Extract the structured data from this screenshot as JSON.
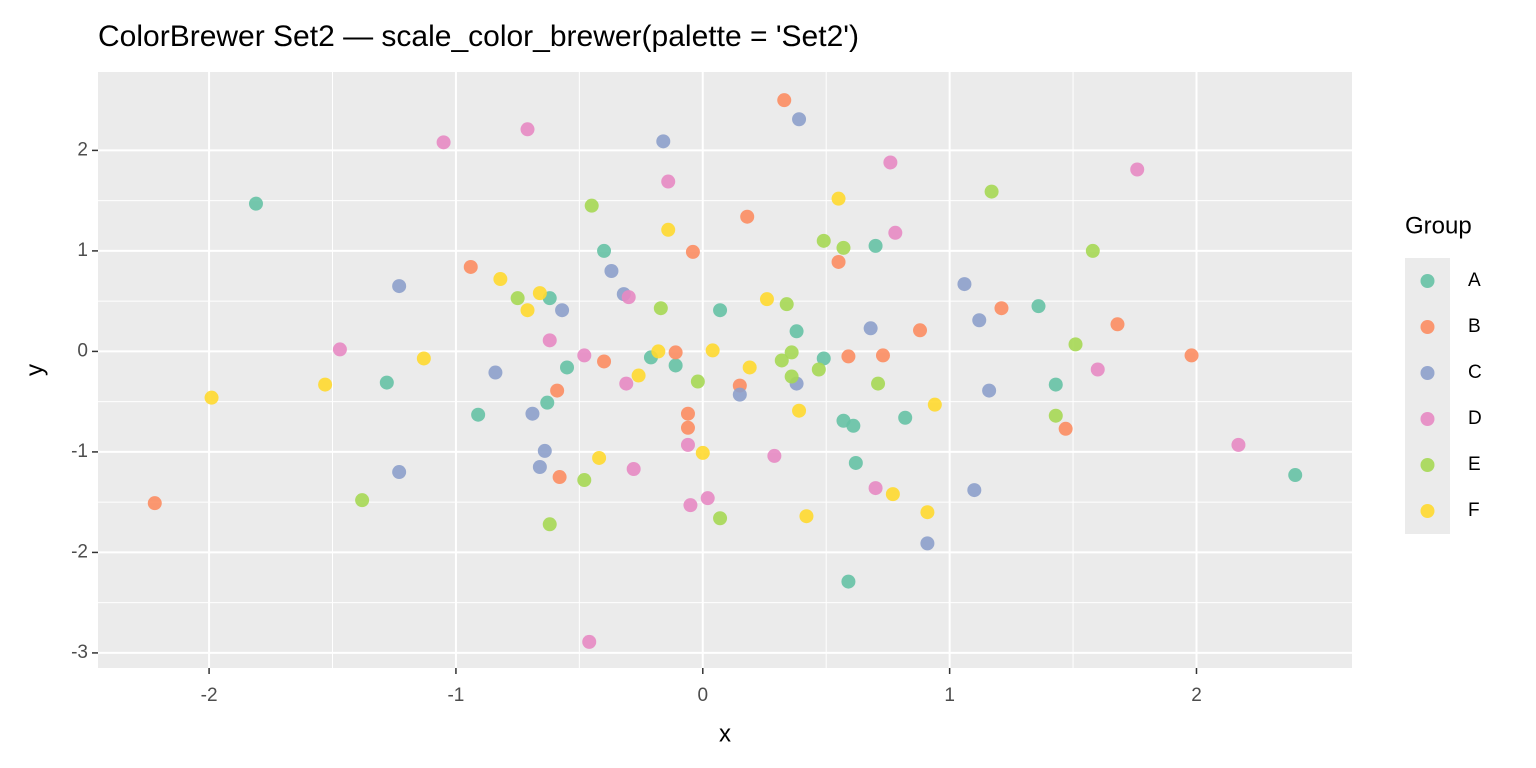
{
  "chart_data": {
    "type": "scatter",
    "title": "ColorBrewer Set2 — scale_color_brewer(palette = 'Set2')",
    "x_label": "x",
    "y_label": "y",
    "legend_title": "Group",
    "legend_position": "right",
    "grid": true,
    "xlim": [
      -2.45,
      2.63
    ],
    "ylim": [
      -3.15,
      2.78
    ],
    "xticks": [
      -2,
      -1,
      0,
      1,
      2
    ],
    "yticks": [
      -3,
      -2,
      -1,
      0,
      1,
      2
    ],
    "series": [
      {
        "name": "A",
        "color": "#66c2a5",
        "x": [
          -1.81,
          -1.28,
          -0.91,
          -0.62,
          -0.55,
          -0.63,
          -0.4,
          -0.21,
          -0.11,
          0.07,
          0.38,
          0.49,
          0.57,
          0.61,
          0.62,
          0.59,
          0.7,
          0.82,
          1.36,
          1.43,
          2.4
        ],
        "values": [
          1.47,
          -0.31,
          -0.63,
          0.53,
          -0.16,
          -0.51,
          1.0,
          -0.06,
          -0.14,
          0.41,
          0.2,
          -0.07,
          -0.69,
          -0.74,
          -1.11,
          -2.29,
          1.05,
          -0.66,
          0.45,
          -0.33,
          -1.23
        ]
      },
      {
        "name": "B",
        "color": "#fc8d62",
        "x": [
          -2.22,
          -0.94,
          -0.59,
          -0.58,
          -0.4,
          -0.11,
          -0.06,
          -0.06,
          -0.04,
          0.15,
          0.18,
          0.33,
          0.55,
          0.59,
          0.73,
          0.88,
          1.21,
          1.47,
          1.68,
          1.98
        ],
        "values": [
          -1.51,
          0.84,
          -0.39,
          -1.25,
          -0.1,
          -0.01,
          -0.62,
          -0.76,
          0.99,
          -0.34,
          1.34,
          2.5,
          0.89,
          -0.05,
          -0.04,
          0.21,
          0.43,
          -0.77,
          0.27,
          -0.04
        ]
      },
      {
        "name": "C",
        "color": "#8da0cb",
        "x": [
          -1.23,
          -1.23,
          -0.84,
          -0.69,
          -0.64,
          -0.66,
          -0.57,
          -0.37,
          -0.32,
          -0.16,
          0.15,
          0.38,
          0.39,
          0.68,
          0.91,
          1.06,
          1.12,
          1.1,
          1.16
        ],
        "values": [
          0.65,
          -1.2,
          -0.21,
          -0.62,
          -0.99,
          -1.15,
          0.41,
          0.8,
          0.57,
          2.09,
          -0.43,
          -0.32,
          2.31,
          0.23,
          -1.91,
          0.67,
          0.31,
          -1.38,
          -0.39
        ]
      },
      {
        "name": "D",
        "color": "#e78ac3",
        "x": [
          -1.47,
          -1.05,
          -0.71,
          -0.62,
          -0.48,
          -0.46,
          -0.31,
          -0.3,
          -0.28,
          -0.14,
          -0.06,
          -0.05,
          0.02,
          0.29,
          0.7,
          0.76,
          0.78,
          1.6,
          1.76,
          2.17
        ],
        "values": [
          0.02,
          2.08,
          2.21,
          0.11,
          -0.04,
          -2.89,
          -0.32,
          0.54,
          -1.17,
          1.69,
          -0.93,
          -1.53,
          -1.46,
          -1.04,
          -1.36,
          1.88,
          1.18,
          -0.18,
          1.81,
          -0.93
        ]
      },
      {
        "name": "E",
        "color": "#a6d854",
        "x": [
          -1.38,
          -0.75,
          -0.62,
          -0.48,
          -0.45,
          -0.17,
          -0.02,
          0.07,
          0.32,
          0.34,
          0.36,
          0.36,
          0.47,
          0.49,
          0.57,
          0.71,
          1.17,
          1.43,
          1.51,
          1.58
        ],
        "values": [
          -1.48,
          0.53,
          -1.72,
          -1.28,
          1.45,
          0.43,
          -0.3,
          -1.66,
          -0.09,
          0.47,
          -0.01,
          -0.25,
          -0.18,
          1.1,
          1.03,
          -0.32,
          1.59,
          -0.64,
          0.07,
          1.0
        ]
      },
      {
        "name": "F",
        "color": "#ffd92f",
        "x": [
          -1.99,
          -1.53,
          -1.13,
          -0.82,
          -0.71,
          -0.66,
          -0.42,
          -0.26,
          -0.18,
          -0.14,
          0.0,
          0.04,
          0.19,
          0.26,
          0.39,
          0.42,
          0.55,
          0.77,
          0.91,
          0.94
        ],
        "values": [
          -0.46,
          -0.33,
          -0.07,
          0.72,
          0.41,
          0.58,
          -1.06,
          -0.24,
          0.0,
          1.21,
          -1.01,
          0.01,
          -0.16,
          0.52,
          -0.59,
          -1.64,
          1.52,
          -1.42,
          -1.6,
          -0.53
        ]
      }
    ]
  }
}
